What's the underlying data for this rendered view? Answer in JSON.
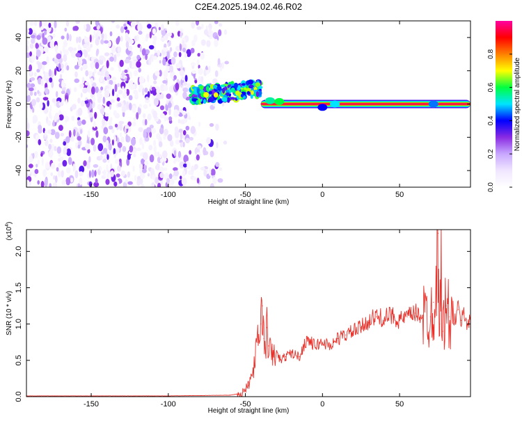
{
  "title": "C2E4.2025.194.02.46.R02",
  "chart_data": [
    {
      "type": "heatmap",
      "name": "spectrogram",
      "xlabel": "Height of straight line (km)",
      "ylabel": "Frequency (Hz)",
      "xlim": [
        -192,
        96
      ],
      "ylim": [
        -50,
        50
      ],
      "x_ticks": [
        -150,
        -100,
        -50,
        0,
        50
      ],
      "y_ticks": [
        -40,
        -20,
        0,
        20,
        40
      ],
      "colorbar": {
        "label": "Normalized spectral amplitude",
        "range": [
          0,
          1
        ],
        "ticks": [
          0.0,
          0.2,
          0.4,
          0.6,
          0.8
        ],
        "colormap": [
          "#ffffff",
          "#f0e6ff",
          "#c8a8ff",
          "#8a2be2",
          "#0000ff",
          "#00e5ff",
          "#00ff40",
          "#ffff00",
          "#ff8000",
          "#ff0000",
          "#ff00a0"
        ]
      },
      "features": [
        {
          "desc": "scattered low-amplitude noise",
          "x_range": [
            -192,
            -70
          ],
          "y_range": [
            -50,
            50
          ],
          "amplitude": 0.1
        },
        {
          "desc": "broadband transition",
          "x_range": [
            -85,
            -40
          ],
          "y_range": [
            -2,
            16
          ],
          "amplitude": 0.45
        },
        {
          "desc": "narrow line at 0 Hz",
          "x_range": [
            -40,
            96
          ],
          "y_range": [
            -1,
            1
          ],
          "amplitude": 0.95
        }
      ]
    },
    {
      "type": "line",
      "name": "snr",
      "xlabel": "Height of straight line (km)",
      "ylabel": "SNR (10 * v/v)",
      "y_scale_label": "(x10",
      "y_scale_exp": "4",
      "xlim": [
        -192,
        96
      ],
      "ylim": [
        0,
        2.3
      ],
      "x_ticks": [
        -150,
        -100,
        -50,
        0,
        50
      ],
      "y_ticks": [
        "0.0",
        "0.5",
        "1.0",
        "1.5",
        "2.0"
      ],
      "series": [
        {
          "color": "#e8312a",
          "x": [
            -192,
            -150,
            -100,
            -60,
            -52,
            -48,
            -45,
            -42,
            -40,
            -39,
            -38,
            -37,
            -36,
            -35,
            -33,
            -30,
            -27,
            -24,
            -20,
            -15,
            -10,
            -5,
            0,
            5,
            10,
            15,
            20,
            25,
            30,
            35,
            40,
            45,
            50,
            55,
            60,
            65,
            70,
            72,
            74,
            75,
            76,
            77,
            78,
            80,
            82,
            85,
            88,
            90,
            92,
            94,
            96
          ],
          "values": [
            0.01,
            0.01,
            0.01,
            0.02,
            0.05,
            0.15,
            0.35,
            0.75,
            1.0,
            1.25,
            0.8,
            0.6,
            0.95,
            0.7,
            0.55,
            0.6,
            0.5,
            0.55,
            0.6,
            0.55,
            0.8,
            0.7,
            0.75,
            0.7,
            0.8,
            0.85,
            0.9,
            0.95,
            1.05,
            1.1,
            1.08,
            1.12,
            1.05,
            1.1,
            1.15,
            1.12,
            1.1,
            1.3,
            1.6,
            2.25,
            1.0,
            1.7,
            0.9,
            1.25,
            1.1,
            1.0,
            1.2,
            1.05,
            1.15,
            1.0,
            1.1
          ]
        }
      ]
    }
  ]
}
